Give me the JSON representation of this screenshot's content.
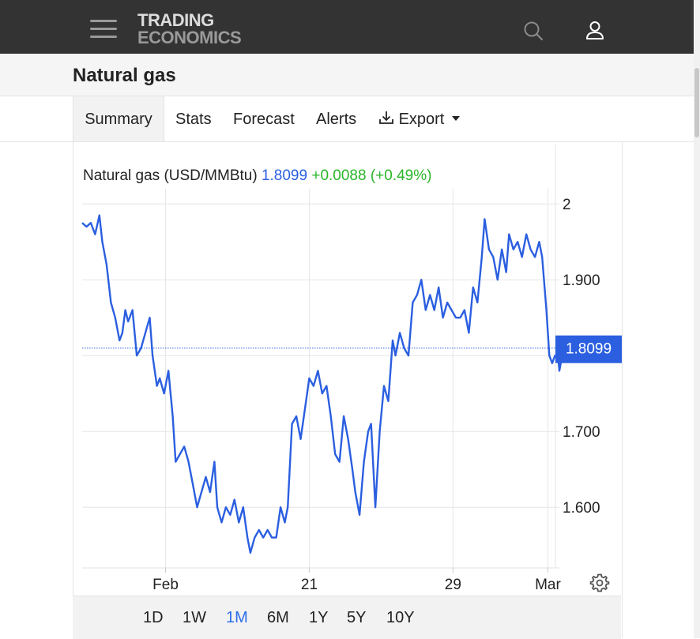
{
  "header": {
    "logo_line1": "TRADING",
    "logo_line2": "ECONOMICS",
    "menu_icon": "hamburger-menu-icon",
    "search_icon": "search-icon",
    "user_icon": "user-icon"
  },
  "page": {
    "title": "Natural gas"
  },
  "tabs": [
    {
      "label": "Summary",
      "active": true
    },
    {
      "label": "Stats"
    },
    {
      "label": "Forecast"
    },
    {
      "label": "Alerts"
    },
    {
      "label": "Export",
      "icon": "download-icon"
    }
  ],
  "quote": {
    "name": "Natural gas (USD/MMBtu)",
    "price": "1.8099",
    "change": "+0.0088 (+0.49%)"
  },
  "ranges": [
    "1D",
    "1W",
    "1M",
    "6M",
    "1Y",
    "5Y",
    "10Y"
  ],
  "active_range": "1M",
  "settings_icon": "gear-icon",
  "colors": {
    "line": "#2b5fe0",
    "change_up": "#2ab52a",
    "topbar": "#333333",
    "active_range": "#2b6ee8"
  },
  "chart_data": {
    "type": "line",
    "title": "",
    "ylim": [
      1.52,
      2.02
    ],
    "yticks": [
      {
        "value": 2.0,
        "label": "2"
      },
      {
        "value": 1.9,
        "label": "1.900"
      },
      {
        "value": 1.8,
        "label": ""
      },
      {
        "value": 1.7,
        "label": "1.700"
      },
      {
        "value": 1.6,
        "label": "1.600"
      }
    ],
    "xlim": [
      0,
      33.2
    ],
    "xticks": [
      {
        "value": 5.8,
        "label": "Feb"
      },
      {
        "value": 15.8,
        "label": "21"
      },
      {
        "value": 25.8,
        "label": "29"
      },
      {
        "value": 32.4,
        "label": "Mar"
      }
    ],
    "last_value": 1.8099,
    "last_label": "1.8099",
    "grid": true,
    "series": [
      {
        "values": [
          [
            0.0,
            1.975
          ],
          [
            0.3,
            1.97
          ],
          [
            0.6,
            1.975
          ],
          [
            0.9,
            1.96
          ],
          [
            1.2,
            1.985
          ],
          [
            1.4,
            1.95
          ],
          [
            1.7,
            1.92
          ],
          [
            2.0,
            1.87
          ],
          [
            2.3,
            1.85
          ],
          [
            2.6,
            1.82
          ],
          [
            2.8,
            1.83
          ],
          [
            3.0,
            1.86
          ],
          [
            3.2,
            1.845
          ],
          [
            3.5,
            1.86
          ],
          [
            3.8,
            1.8
          ],
          [
            4.1,
            1.81
          ],
          [
            4.4,
            1.83
          ],
          [
            4.7,
            1.85
          ],
          [
            4.9,
            1.8
          ],
          [
            5.2,
            1.76
          ],
          [
            5.4,
            1.77
          ],
          [
            5.7,
            1.75
          ],
          [
            6.0,
            1.78
          ],
          [
            6.3,
            1.72
          ],
          [
            6.5,
            1.66
          ],
          [
            6.8,
            1.67
          ],
          [
            7.1,
            1.68
          ],
          [
            7.4,
            1.66
          ],
          [
            7.7,
            1.63
          ],
          [
            8.0,
            1.6
          ],
          [
            8.3,
            1.62
          ],
          [
            8.6,
            1.64
          ],
          [
            8.9,
            1.62
          ],
          [
            9.2,
            1.66
          ],
          [
            9.4,
            1.6
          ],
          [
            9.7,
            1.58
          ],
          [
            10.0,
            1.6
          ],
          [
            10.3,
            1.59
          ],
          [
            10.6,
            1.61
          ],
          [
            10.9,
            1.58
          ],
          [
            11.2,
            1.6
          ],
          [
            11.5,
            1.56
          ],
          [
            11.7,
            1.54
          ],
          [
            12.0,
            1.56
          ],
          [
            12.3,
            1.57
          ],
          [
            12.6,
            1.56
          ],
          [
            12.9,
            1.57
          ],
          [
            13.2,
            1.56
          ],
          [
            13.5,
            1.56
          ],
          [
            13.8,
            1.6
          ],
          [
            14.1,
            1.58
          ],
          [
            14.3,
            1.6
          ],
          [
            14.6,
            1.71
          ],
          [
            14.9,
            1.72
          ],
          [
            15.2,
            1.69
          ],
          [
            15.5,
            1.73
          ],
          [
            15.8,
            1.77
          ],
          [
            16.1,
            1.76
          ],
          [
            16.4,
            1.78
          ],
          [
            16.7,
            1.75
          ],
          [
            17.0,
            1.76
          ],
          [
            17.3,
            1.72
          ],
          [
            17.6,
            1.67
          ],
          [
            17.9,
            1.66
          ],
          [
            18.2,
            1.72
          ],
          [
            18.5,
            1.69
          ],
          [
            18.8,
            1.65
          ],
          [
            19.0,
            1.62
          ],
          [
            19.3,
            1.59
          ],
          [
            19.6,
            1.66
          ],
          [
            19.9,
            1.7
          ],
          [
            20.1,
            1.71
          ],
          [
            20.4,
            1.6
          ],
          [
            20.7,
            1.7
          ],
          [
            21.0,
            1.76
          ],
          [
            21.3,
            1.74
          ],
          [
            21.6,
            1.82
          ],
          [
            21.8,
            1.8
          ],
          [
            22.1,
            1.83
          ],
          [
            22.4,
            1.81
          ],
          [
            22.7,
            1.8
          ],
          [
            23.0,
            1.87
          ],
          [
            23.3,
            1.88
          ],
          [
            23.6,
            1.9
          ],
          [
            23.9,
            1.86
          ],
          [
            24.2,
            1.88
          ],
          [
            24.5,
            1.86
          ],
          [
            24.8,
            1.89
          ],
          [
            25.1,
            1.85
          ],
          [
            25.4,
            1.87
          ],
          [
            25.7,
            1.86
          ],
          [
            26.0,
            1.85
          ],
          [
            26.3,
            1.85
          ],
          [
            26.6,
            1.86
          ],
          [
            26.9,
            1.83
          ],
          [
            27.2,
            1.89
          ],
          [
            27.5,
            1.87
          ],
          [
            27.8,
            1.93
          ],
          [
            28.0,
            1.98
          ],
          [
            28.3,
            1.94
          ],
          [
            28.6,
            1.93
          ],
          [
            28.9,
            1.9
          ],
          [
            29.2,
            1.94
          ],
          [
            29.5,
            1.91
          ],
          [
            29.7,
            1.96
          ],
          [
            30.0,
            1.94
          ],
          [
            30.3,
            1.95
          ],
          [
            30.6,
            1.93
          ],
          [
            30.9,
            1.96
          ],
          [
            31.2,
            1.94
          ],
          [
            31.5,
            1.93
          ],
          [
            31.8,
            1.95
          ],
          [
            32.0,
            1.93
          ],
          [
            32.3,
            1.86
          ],
          [
            32.5,
            1.8
          ],
          [
            32.7,
            1.79
          ],
          [
            32.9,
            1.8
          ],
          [
            33.1,
            1.8
          ],
          [
            33.2,
            1.78
          ],
          [
            33.4,
            1.8
          ],
          [
            33.6,
            1.81
          ]
        ]
      }
    ]
  }
}
